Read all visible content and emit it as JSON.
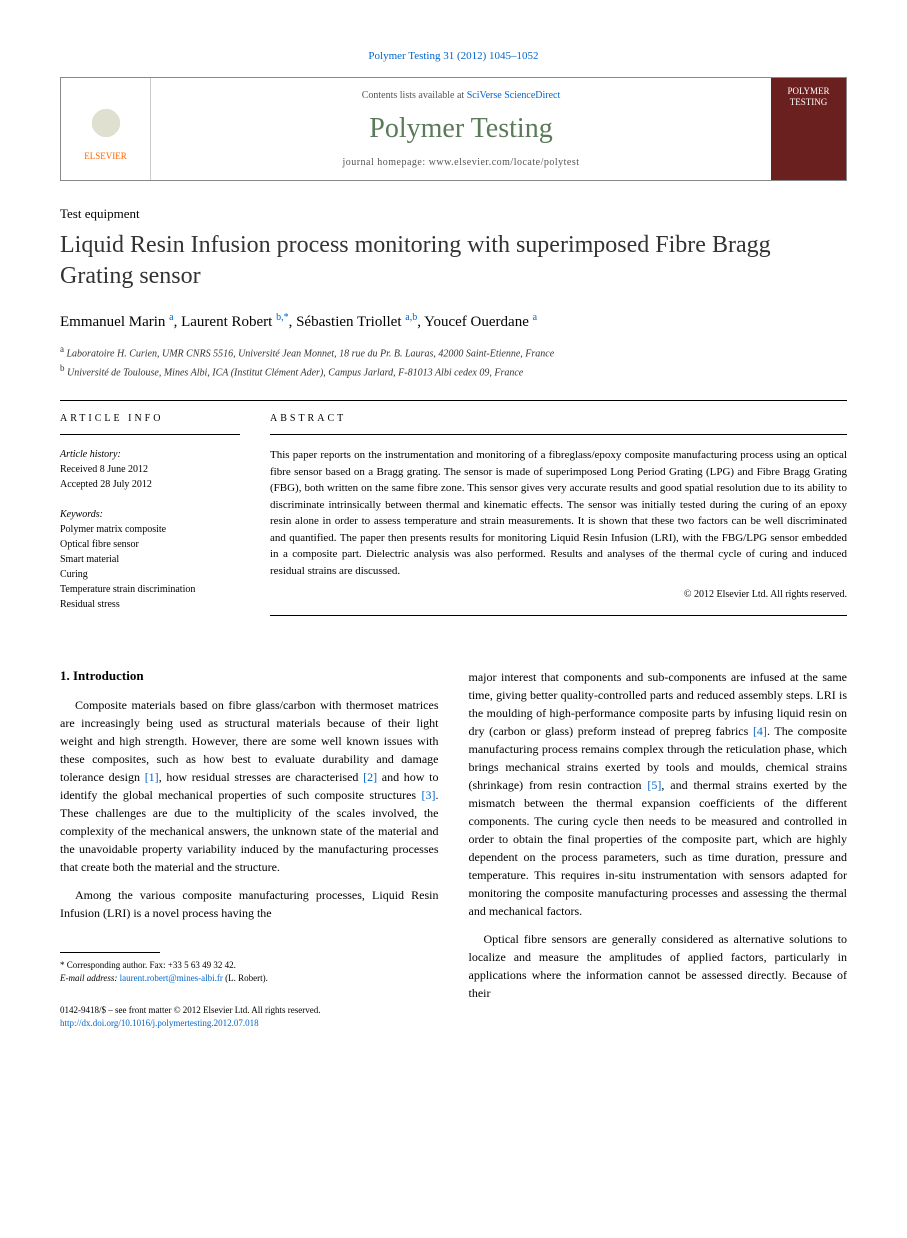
{
  "journal_ref": "Polymer Testing 31 (2012) 1045–1052",
  "header": {
    "publisher": "ELSEVIER",
    "contents_prefix": "Contents lists available at ",
    "contents_link": "SciVerse ScienceDirect",
    "journal_name": "Polymer Testing",
    "homepage_prefix": "journal homepage: ",
    "homepage_url": "www.elsevier.com/locate/polytest",
    "cover_title": "POLYMER TESTING"
  },
  "article_type": "Test equipment",
  "title": "Liquid Resin Infusion process monitoring with superimposed Fibre Bragg Grating sensor",
  "authors": [
    {
      "name": "Emmanuel Marin",
      "affil": "a"
    },
    {
      "name": "Laurent Robert",
      "affil": "b,*"
    },
    {
      "name": "Sébastien Triollet",
      "affil": "a,b"
    },
    {
      "name": "Youcef Ouerdane",
      "affil": "a"
    }
  ],
  "affiliations": [
    {
      "sup": "a",
      "text": "Laboratoire H. Curien, UMR CNRS 5516, Université Jean Monnet, 18 rue du Pr. B. Lauras, 42000 Saint-Etienne, France"
    },
    {
      "sup": "b",
      "text": "Université de Toulouse, Mines Albi, ICA (Institut Clément Ader), Campus Jarlard, F-81013 Albi cedex 09, France"
    }
  ],
  "info": {
    "section_label": "ARTICLE INFO",
    "history_label": "Article history:",
    "received": "Received 8 June 2012",
    "accepted": "Accepted 28 July 2012",
    "keywords_label": "Keywords:",
    "keywords": [
      "Polymer matrix composite",
      "Optical fibre sensor",
      "Smart material",
      "Curing",
      "Temperature strain discrimination",
      "Residual stress"
    ]
  },
  "abstract": {
    "section_label": "ABSTRACT",
    "text": "This paper reports on the instrumentation and monitoring of a fibreglass/epoxy composite manufacturing process using an optical fibre sensor based on a Bragg grating. The sensor is made of superimposed Long Period Grating (LPG) and Fibre Bragg Grating (FBG), both written on the same fibre zone. This sensor gives very accurate results and good spatial resolution due to its ability to discriminate intrinsically between thermal and kinematic effects. The sensor was initially tested during the curing of an epoxy resin alone in order to assess temperature and strain measurements. It is shown that these two factors can be well discriminated and quantified. The paper then presents results for monitoring Liquid Resin Infusion (LRI), with the FBG/LPG sensor embedded in a composite part. Dielectric analysis was also performed. Results and analyses of the thermal cycle of curing and induced residual strains are discussed.",
    "copyright": "© 2012 Elsevier Ltd. All rights reserved."
  },
  "body": {
    "intro_heading": "1. Introduction",
    "col1_p1": "Composite materials based on fibre glass/carbon with thermoset matrices are increasingly being used as structural materials because of their light weight and high strength. However, there are some well known issues with these composites, such as how best to evaluate durability and damage tolerance design [1], how residual stresses are characterised [2] and how to identify the global mechanical properties of such composite structures [3]. These challenges are due to the multiplicity of the scales involved, the complexity of the mechanical answers, the unknown state of the material and the unavoidable property variability induced by the manufacturing processes that create both the material and the structure.",
    "col1_p2": "Among the various composite manufacturing processes, Liquid Resin Infusion (LRI) is a novel process having the",
    "col2_p1": "major interest that components and sub-components are infused at the same time, giving better quality-controlled parts and reduced assembly steps. LRI is the moulding of high-performance composite parts by infusing liquid resin on dry (carbon or glass) preform instead of prepreg fabrics [4]. The composite manufacturing process remains complex through the reticulation phase, which brings mechanical strains exerted by tools and moulds, chemical strains (shrinkage) from resin contraction [5], and thermal strains exerted by the mismatch between the thermal expansion coefficients of the different components. The curing cycle then needs to be measured and controlled in order to obtain the final properties of the composite part, which are highly dependent on the process parameters, such as time duration, pressure and temperature. This requires in-situ instrumentation with sensors adapted for monitoring the composite manufacturing processes and assessing the thermal and mechanical factors.",
    "col2_p2": "Optical fibre sensors are generally considered as alternative solutions to localize and measure the amplitudes of applied factors, particularly in applications where the information cannot be assessed directly. Because of their"
  },
  "footnote": {
    "corresponding": "* Corresponding author. Fax: +33 5 63 49 32 42.",
    "email_label": "E-mail address: ",
    "email": "laurent.robert@mines-albi.fr",
    "email_suffix": " (L. Robert)."
  },
  "bottom": {
    "issn": "0142-9418/$ – see front matter © 2012 Elsevier Ltd. All rights reserved.",
    "doi": "http://dx.doi.org/10.1016/j.polymertesting.2012.07.018"
  },
  "colors": {
    "link": "#0066cc",
    "journal_green": "#5a7a5a",
    "cover_bg": "#6b2020",
    "elsevier_orange": "#ff6600"
  }
}
